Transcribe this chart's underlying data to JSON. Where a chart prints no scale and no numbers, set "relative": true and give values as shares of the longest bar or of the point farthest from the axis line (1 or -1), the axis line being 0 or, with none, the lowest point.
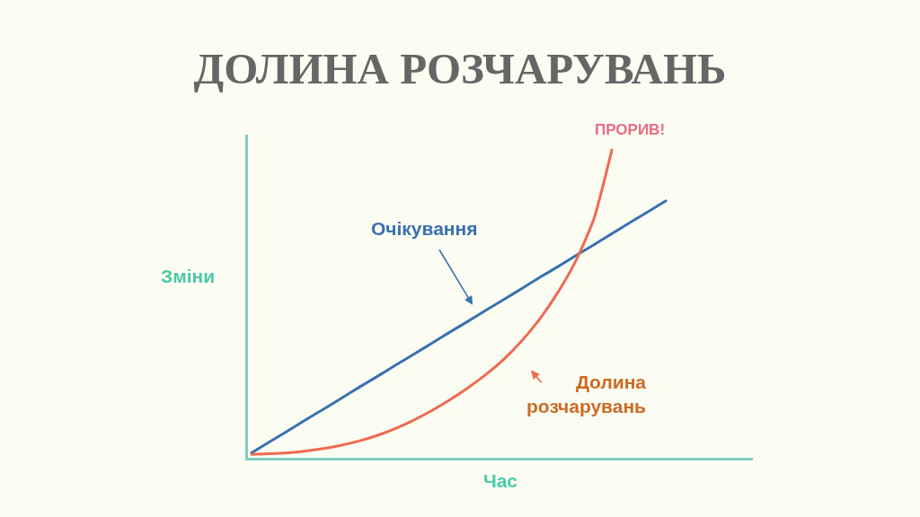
{
  "chart_data": {
    "type": "line",
    "title": "ДОЛИНА РОЗЧАРУВАНЬ",
    "xlabel": "Час",
    "ylabel": "Зміни",
    "relative": true,
    "line_style": "solid",
    "annotations": [
      "ПРОРИВ!",
      "Долина\nрозчарувань"
    ],
    "categories": [
      null,
      null,
      null,
      null,
      null,
      null,
      null,
      null,
      null,
      null,
      null,
      null,
      null,
      null,
      null,
      null,
      null,
      null,
      null,
      null,
      null,
      null,
      null,
      null
    ],
    "series": [
      {
        "name": "Очікування",
        "color": "#3a70ae",
        "values": [
          0.016,
          0.052,
          0.087,
          0.123,
          0.158,
          0.194,
          0.23,
          0.265,
          0.301,
          0.336,
          0.372,
          0.408,
          0.443,
          0.479,
          0.514,
          0.55,
          0.586,
          0.621,
          0.657,
          0.692,
          0.728,
          0.764,
          0.799,
          0.835
        ]
      },
      {
        "color": "#ef6a50",
        "values": [
          0.011,
          0.013,
          0.016,
          0.022,
          0.03,
          0.041,
          0.055,
          0.073,
          0.095,
          0.122,
          0.153,
          0.188,
          0.227,
          0.27,
          0.32,
          0.38,
          0.451,
          0.537,
          0.64,
          0.776,
          1.0,
          null,
          null,
          null
        ]
      }
    ]
  }
}
